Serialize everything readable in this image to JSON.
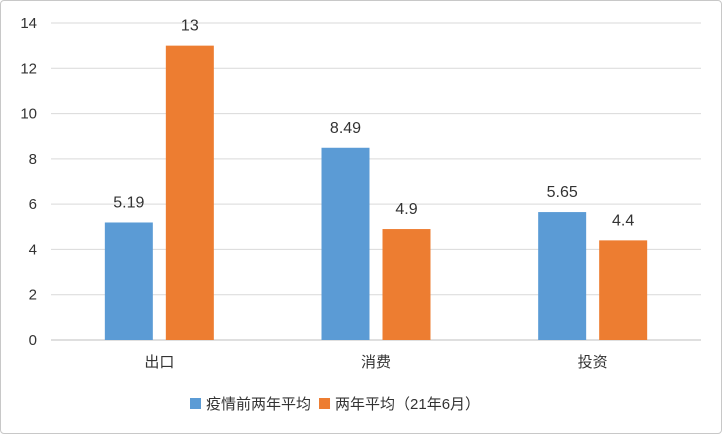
{
  "chart_data": {
    "type": "bar",
    "categories": [
      "出口",
      "消费",
      "投资"
    ],
    "series": [
      {
        "name": "疫情前两年平均",
        "values": [
          5.19,
          8.49,
          5.65
        ],
        "color": "#5b9bd5"
      },
      {
        "name": "两年平均（21年6月）",
        "values": [
          13,
          4.9,
          4.4
        ],
        "color": "#ed7d31"
      }
    ],
    "data_labels": [
      [
        "5.19",
        "8.49",
        "5.65"
      ],
      [
        "13",
        "4.9",
        "4.4"
      ]
    ],
    "yticks": [
      "0",
      "2",
      "4",
      "6",
      "8",
      "10",
      "12",
      "14"
    ],
    "ylim": [
      0,
      14
    ],
    "grid": true,
    "legend": "bottom"
  }
}
